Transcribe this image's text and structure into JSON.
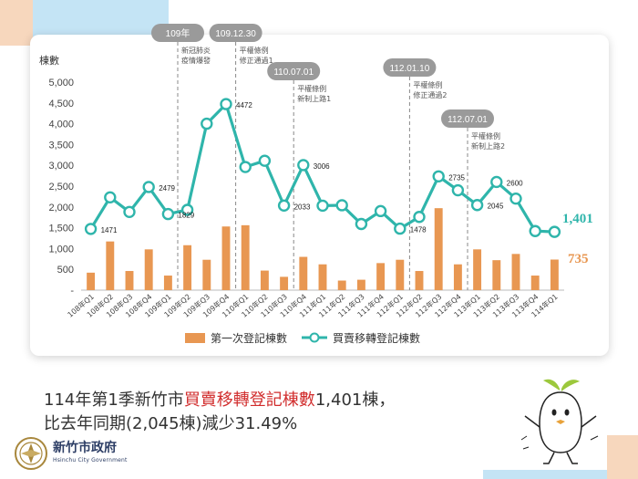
{
  "chart_data": {
    "type": "bar+line",
    "ylabel": "棟數",
    "ylim": [
      0,
      5000
    ],
    "yticks": [
      "-",
      "500",
      "1,000",
      "1,500",
      "2,000",
      "2,500",
      "3,000",
      "3,500",
      "4,000",
      "4,500",
      "5,000"
    ],
    "categories": [
      "108年Q1",
      "108年Q2",
      "108年Q3",
      "108年Q4",
      "109年Q1",
      "109年Q2",
      "109年Q3",
      "109年Q4",
      "110年Q1",
      "110年Q2",
      "110年Q3",
      "110年Q4",
      "111年Q1",
      "111年Q2",
      "111年Q3",
      "111年Q4",
      "112年Q1",
      "112年Q2",
      "112年Q3",
      "112年Q4",
      "113年Q1",
      "113年Q2",
      "113年Q3",
      "113年Q4",
      "114年Q1"
    ],
    "series": [
      {
        "name": "第一次登記棟數",
        "kind": "bar",
        "color": "#e89752",
        "values": [
          420,
          1170,
          460,
          980,
          350,
          1080,
          730,
          1530,
          1560,
          470,
          320,
          800,
          620,
          230,
          250,
          650,
          730,
          460,
          1970,
          620,
          980,
          720,
          870,
          350,
          735
        ]
      },
      {
        "name": "買賣移轉登記棟數",
        "kind": "line",
        "color": "#2fb5ab",
        "values": [
          1471,
          2230,
          1880,
          2479,
          1829,
          1930,
          4000,
          4472,
          2960,
          3110,
          2033,
          3006,
          2030,
          2040,
          1590,
          1900,
          1478,
          1760,
          2735,
          2400,
          2045,
          2600,
          2200,
          1420,
          1401
        ]
      }
    ],
    "point_labels": [
      {
        "index": 0,
        "text": "1471"
      },
      {
        "index": 3,
        "text": "2479"
      },
      {
        "index": 4,
        "text": "1829"
      },
      {
        "index": 7,
        "text": "4472"
      },
      {
        "index": 10,
        "text": "2033"
      },
      {
        "index": 11,
        "text": "3006"
      },
      {
        "index": 16,
        "text": "1478"
      },
      {
        "index": 18,
        "text": "2735"
      },
      {
        "index": 20,
        "text": "2045"
      },
      {
        "index": 21,
        "text": "2600"
      }
    ],
    "end_labels": {
      "line": "1,401",
      "bar": "735"
    },
    "annotations": [
      {
        "date": "109年",
        "text": [
          "新冠肺炎",
          "疫情爆發"
        ],
        "after_index": 4
      },
      {
        "date": "109.12.30",
        "text": [
          "平權條例",
          "修正通過1"
        ],
        "after_index": 7
      },
      {
        "date": "110.07.01",
        "text": [
          "平權條例",
          "新制上路1"
        ],
        "after_index": 10
      },
      {
        "date": "112.01.10",
        "text": [
          "平權條例",
          "修正通過2"
        ],
        "after_index": 16
      },
      {
        "date": "112.07.01",
        "text": [
          "平權條例",
          "新制上路2"
        ],
        "after_index": 19
      }
    ],
    "legend": {
      "placement": "bottom"
    },
    "grid": false
  },
  "caption": {
    "line1_pre": "114年第1季新竹市",
    "line1_highlight": "買賣移轉登記棟數",
    "line1_post": "1,401棟，",
    "line2": "比去年同期(2,045棟)減少31.49%"
  },
  "logo": {
    "name": "新竹市政府",
    "subtitle": "Hsinchu City Government"
  }
}
